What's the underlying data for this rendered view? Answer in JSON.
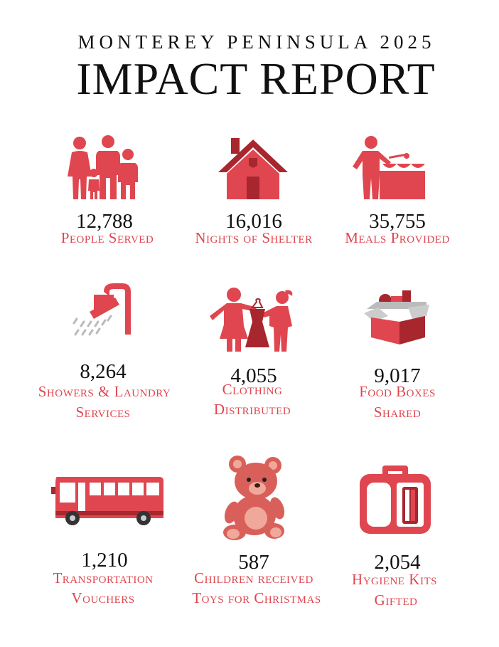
{
  "header": {
    "subtitle": "MONTEREY PENINSULA 2025",
    "title": "IMPACT REPORT"
  },
  "colors": {
    "accent": "#e0464f",
    "accent_dark": "#a8262e",
    "text": "#111111"
  },
  "stats": [
    {
      "icon": "family-icon",
      "value": "12,788",
      "label": "People Served"
    },
    {
      "icon": "house-icon",
      "value": "16,016",
      "label": "Nights of Shelter"
    },
    {
      "icon": "serving-meal-icon",
      "value": "35,755",
      "label": "Meals Provided"
    },
    {
      "icon": "shower-icon",
      "value": "8,264",
      "label": "Showers & Laundry",
      "label2": "Services"
    },
    {
      "icon": "clothing-icon",
      "value": "4,055",
      "label": "Clothing",
      "label2": "Distributed"
    },
    {
      "icon": "food-box-icon",
      "value": "9,017",
      "label": "Food Boxes",
      "label2": "Shared"
    },
    {
      "icon": "bus-icon",
      "value": "1,210",
      "label": "Transportation",
      "label2": "Vouchers"
    },
    {
      "icon": "teddy-bear-icon",
      "value": "587",
      "label": "Children received",
      "label2": "Toys  for Christmas"
    },
    {
      "icon": "hygiene-kit-icon",
      "value": "2,054",
      "label": "Hygiene Kits",
      "label2": "Gifted"
    }
  ]
}
